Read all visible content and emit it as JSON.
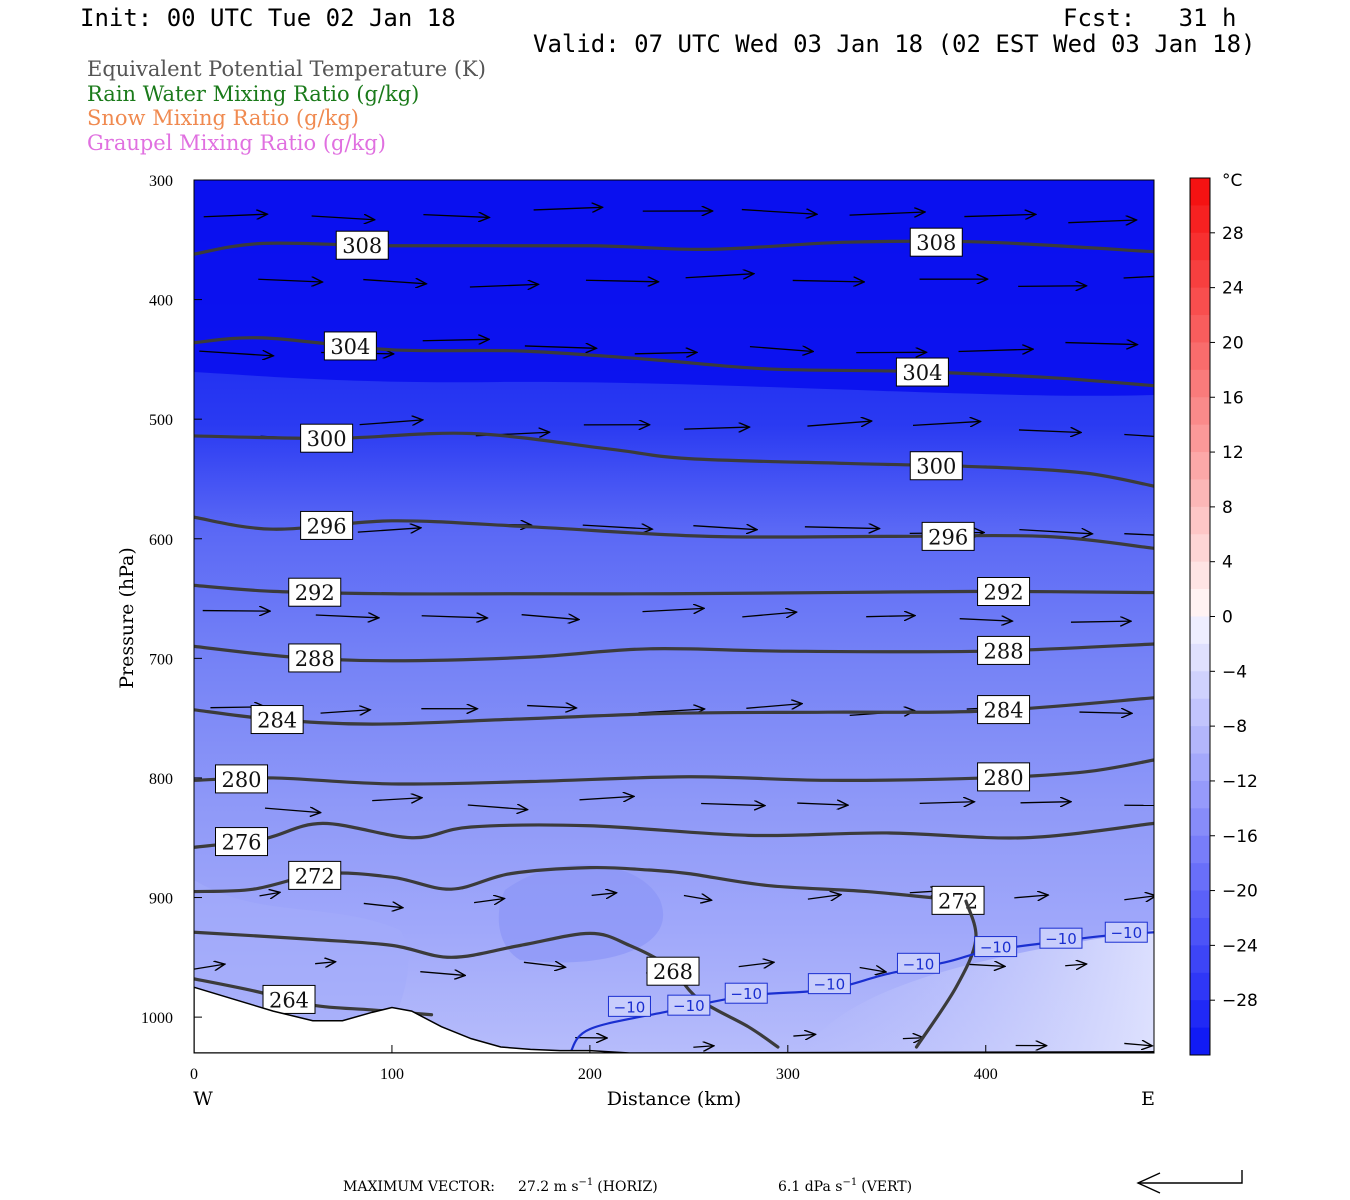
{
  "header": {
    "init": "Init: 00 UTC Tue 02 Jan 18",
    "fcst": "Fcst:   31 h",
    "valid": "Valid: 07 UTC Wed 03 Jan 18 (02 EST Wed 03 Jan 18)"
  },
  "fields": [
    {
      "label": "Equivalent Potential Temperature (K)",
      "color": "#555555"
    },
    {
      "label": "Rain Water Mixing Ratio (g/kg)",
      "color": "#1a7a1a"
    },
    {
      "label": "Snow Mixing Ratio (g/kg)",
      "color": "#f08a50"
    },
    {
      "label": "Graupel Mixing Ratio (g/kg)",
      "color": "#e070e0"
    }
  ],
  "chart_data": {
    "type": "cross-section",
    "xlabel": "Distance (km)",
    "ylabel": "Pressure (hPa)",
    "xlim": [
      0,
      485
    ],
    "ylim": [
      1030,
      300
    ],
    "x_ticks": [
      0,
      100,
      200,
      300,
      400
    ],
    "y_ticks": [
      300,
      400,
      500,
      600,
      700,
      800,
      900,
      1000
    ],
    "x_end_labels": {
      "left": "W",
      "right": "E"
    },
    "colorbar": {
      "unit": "°C",
      "tick_labels": [
        "28",
        "24",
        "20",
        "16",
        "12",
        "8",
        "4",
        "0",
        "−4",
        "−8",
        "−12",
        "−16",
        "−20",
        "−24",
        "−28"
      ],
      "tick_values": [
        28,
        24,
        20,
        16,
        12,
        8,
        4,
        0,
        -4,
        -8,
        -12,
        -16,
        -20,
        -24,
        -28
      ],
      "range": [
        -32,
        32
      ]
    },
    "theta_e_contours": [
      {
        "value": 308,
        "labels_x": [
          85,
          375
        ],
        "points": [
          [
            0,
            362
          ],
          [
            35,
            353
          ],
          [
            100,
            355
          ],
          [
            200,
            355
          ],
          [
            260,
            358
          ],
          [
            330,
            352
          ],
          [
            400,
            352
          ],
          [
            485,
            360
          ]
        ]
      },
      {
        "value": 304,
        "labels_x": [
          79,
          368
        ],
        "points": [
          [
            0,
            436
          ],
          [
            35,
            432
          ],
          [
            100,
            442
          ],
          [
            165,
            443
          ],
          [
            230,
            450
          ],
          [
            290,
            458
          ],
          [
            360,
            460
          ],
          [
            430,
            465
          ],
          [
            485,
            472
          ]
        ]
      },
      {
        "value": 300,
        "labels_x": [
          67,
          375
        ],
        "points": [
          [
            0,
            514
          ],
          [
            70,
            516
          ],
          [
            140,
            512
          ],
          [
            210,
            525
          ],
          [
            250,
            533
          ],
          [
            330,
            537
          ],
          [
            400,
            540
          ],
          [
            450,
            545
          ],
          [
            485,
            556
          ]
        ]
      },
      {
        "value": 296,
        "labels_x": [
          67,
          381
        ],
        "points": [
          [
            0,
            582
          ],
          [
            40,
            592
          ],
          [
            100,
            585
          ],
          [
            170,
            590
          ],
          [
            260,
            598
          ],
          [
            350,
            598
          ],
          [
            430,
            598
          ],
          [
            485,
            608
          ]
        ]
      },
      {
        "value": 292,
        "labels_x": [
          61,
          409
        ],
        "points": [
          [
            0,
            639
          ],
          [
            40,
            644
          ],
          [
            100,
            646
          ],
          [
            160,
            646
          ],
          [
            240,
            646
          ],
          [
            320,
            645
          ],
          [
            400,
            644
          ],
          [
            485,
            645
          ]
        ]
      },
      {
        "value": 288,
        "labels_x": [
          61,
          409
        ],
        "points": [
          [
            0,
            690
          ],
          [
            50,
            699
          ],
          [
            100,
            702
          ],
          [
            170,
            699
          ],
          [
            230,
            692
          ],
          [
            300,
            694
          ],
          [
            400,
            694
          ],
          [
            485,
            688
          ]
        ]
      },
      {
        "value": 284,
        "labels_x": [
          42,
          409
        ],
        "points": [
          [
            0,
            743
          ],
          [
            40,
            751
          ],
          [
            90,
            755
          ],
          [
            160,
            751
          ],
          [
            240,
            746
          ],
          [
            320,
            745
          ],
          [
            400,
            744
          ],
          [
            485,
            733
          ]
        ]
      },
      {
        "value": 280,
        "labels_x": [
          24,
          409
        ],
        "points": [
          [
            0,
            802
          ],
          [
            40,
            800
          ],
          [
            100,
            805
          ],
          [
            170,
            803
          ],
          [
            250,
            799
          ],
          [
            320,
            802
          ],
          [
            400,
            800
          ],
          [
            450,
            795
          ],
          [
            485,
            785
          ]
        ]
      },
      {
        "value": 276,
        "labels_x": [
          24
        ],
        "points": [
          [
            0,
            858
          ],
          [
            35,
            851
          ],
          [
            65,
            838
          ],
          [
            110,
            850
          ],
          [
            140,
            841
          ],
          [
            200,
            840
          ],
          [
            280,
            848
          ],
          [
            350,
            846
          ],
          [
            420,
            850
          ],
          [
            485,
            838
          ]
        ]
      },
      {
        "value": 272,
        "labels_x": [
          61,
          386
        ],
        "points": [
          [
            0,
            895
          ],
          [
            30,
            893
          ],
          [
            65,
            880
          ],
          [
            100,
            883
          ],
          [
            130,
            893
          ],
          [
            160,
            880
          ],
          [
            200,
            875
          ],
          [
            230,
            877
          ],
          [
            250,
            880
          ],
          [
            290,
            890
          ],
          [
            340,
            895
          ],
          [
            390,
            903
          ]
        ]
      },
      {
        "value": 272,
        "labels_x": [],
        "points": [
          [
            390,
            903
          ],
          [
            395,
            935
          ],
          [
            385,
            975
          ],
          [
            365,
            1025
          ]
        ]
      },
      {
        "value": 268,
        "labels_x": [
          242
        ],
        "points": [
          [
            0,
            929
          ],
          [
            60,
            935
          ],
          [
            100,
            940
          ],
          [
            130,
            950
          ],
          [
            165,
            940
          ],
          [
            200,
            930
          ],
          [
            220,
            940
          ],
          [
            240,
            958
          ],
          [
            255,
            985
          ],
          [
            280,
            1008
          ],
          [
            295,
            1025
          ]
        ]
      },
      {
        "value": 264,
        "labels_x": [
          48
        ],
        "points": [
          [
            0,
            968
          ],
          [
            30,
            978
          ],
          [
            60,
            990
          ],
          [
            90,
            994
          ],
          [
            120,
            998
          ]
        ]
      }
    ],
    "temperature_contour": {
      "value": -10,
      "labels": [
        [
          220,
          991
        ],
        [
          250,
          990
        ],
        [
          279,
          980
        ],
        [
          321,
          972
        ],
        [
          366,
          955
        ],
        [
          405,
          941
        ],
        [
          438,
          934
        ],
        [
          471,
          929
        ]
      ],
      "points": [
        [
          190,
          1030
        ],
        [
          200,
          1010
        ],
        [
          240,
          995
        ],
        [
          280,
          982
        ],
        [
          320,
          977
        ],
        [
          350,
          964
        ],
        [
          380,
          954
        ],
        [
          400,
          945
        ],
        [
          430,
          938
        ],
        [
          460,
          932
        ],
        [
          485,
          929
        ]
      ]
    },
    "wind_vectors_note": "vectors point eastward throughout the section",
    "footer": {
      "max_vector_label": "MAXIMUM VECTOR:",
      "horiz": "27.2 m s",
      "horiz_unit": "(HORIZ)",
      "vert": "6.1 dPa s",
      "vert_unit": "(VERT)",
      "exp": "−1"
    }
  }
}
